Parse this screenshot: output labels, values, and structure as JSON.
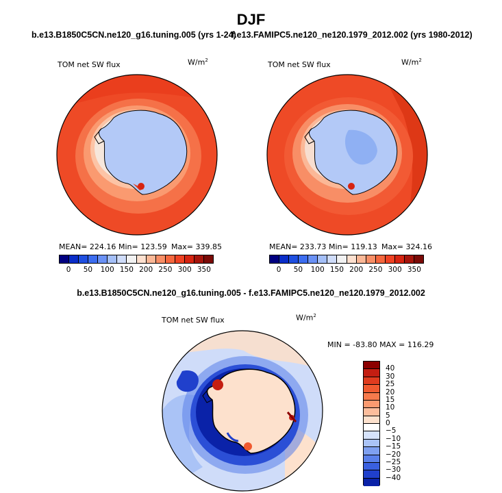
{
  "title": "DJF",
  "panel1": {
    "subtitle": "b.e13.B1850C5CN.ne120_g16.tuning.005 (yrs 1-24)",
    "var_label": "TOM net SW flux",
    "unit": "W/m",
    "unit_exp": "2",
    "mean_label": "MEAN= 224.16",
    "min_label": "Min= 123.59",
    "max_label": "Max= 339.85"
  },
  "panel2": {
    "subtitle": "f.e13.FAMIPC5.ne120_ne120.1979_2012.002 (yrs 1980-2012)",
    "var_label": "TOM net SW flux",
    "unit": "W/m",
    "unit_exp": "2",
    "mean_label": "MEAN= 233.73",
    "min_label": "Min= 119.13",
    "max_label": "Max= 324.16"
  },
  "panel3": {
    "subtitle": "b.e13.B1850C5CN.ne120_g16.tuning.005 - f.e13.FAMIPC5.ne120_ne120.1979_2012.002",
    "var_label": "TOM net SW flux",
    "unit": "W/m",
    "unit_exp": "2",
    "minmax_label": "MIN = -83.80  MAX = 116.29"
  },
  "colorbar_abs": {
    "ticks": [
      "0",
      "50",
      "100",
      "150",
      "200",
      "250",
      "300",
      "350"
    ],
    "colors": [
      "#000080",
      "#0a2dc8",
      "#1f4fe0",
      "#3c6df0",
      "#6a91f5",
      "#a4bff8",
      "#cfdcf9",
      "#f2f2f2",
      "#fde0cf",
      "#fbb897",
      "#f88e66",
      "#f5673e",
      "#ef4223",
      "#d62411",
      "#a6140b",
      "#7a0a06"
    ]
  },
  "colorbar_diff": {
    "ticks": [
      "40",
      "30",
      "25",
      "20",
      "15",
      "10",
      "5",
      "0",
      "−5",
      "−10",
      "−15",
      "−20",
      "−25",
      "−30",
      "−40"
    ],
    "colors": [
      "#8b0000",
      "#c41e12",
      "#e03c1f",
      "#f05a30",
      "#f77a4c",
      "#fa9a70",
      "#fcbd9c",
      "#fde1cd",
      "#ffffff",
      "#d6e3fb",
      "#aac3f6",
      "#7fa0f0",
      "#5a80ea",
      "#3a60e0",
      "#2040cc",
      "#0a22a8"
    ]
  }
}
